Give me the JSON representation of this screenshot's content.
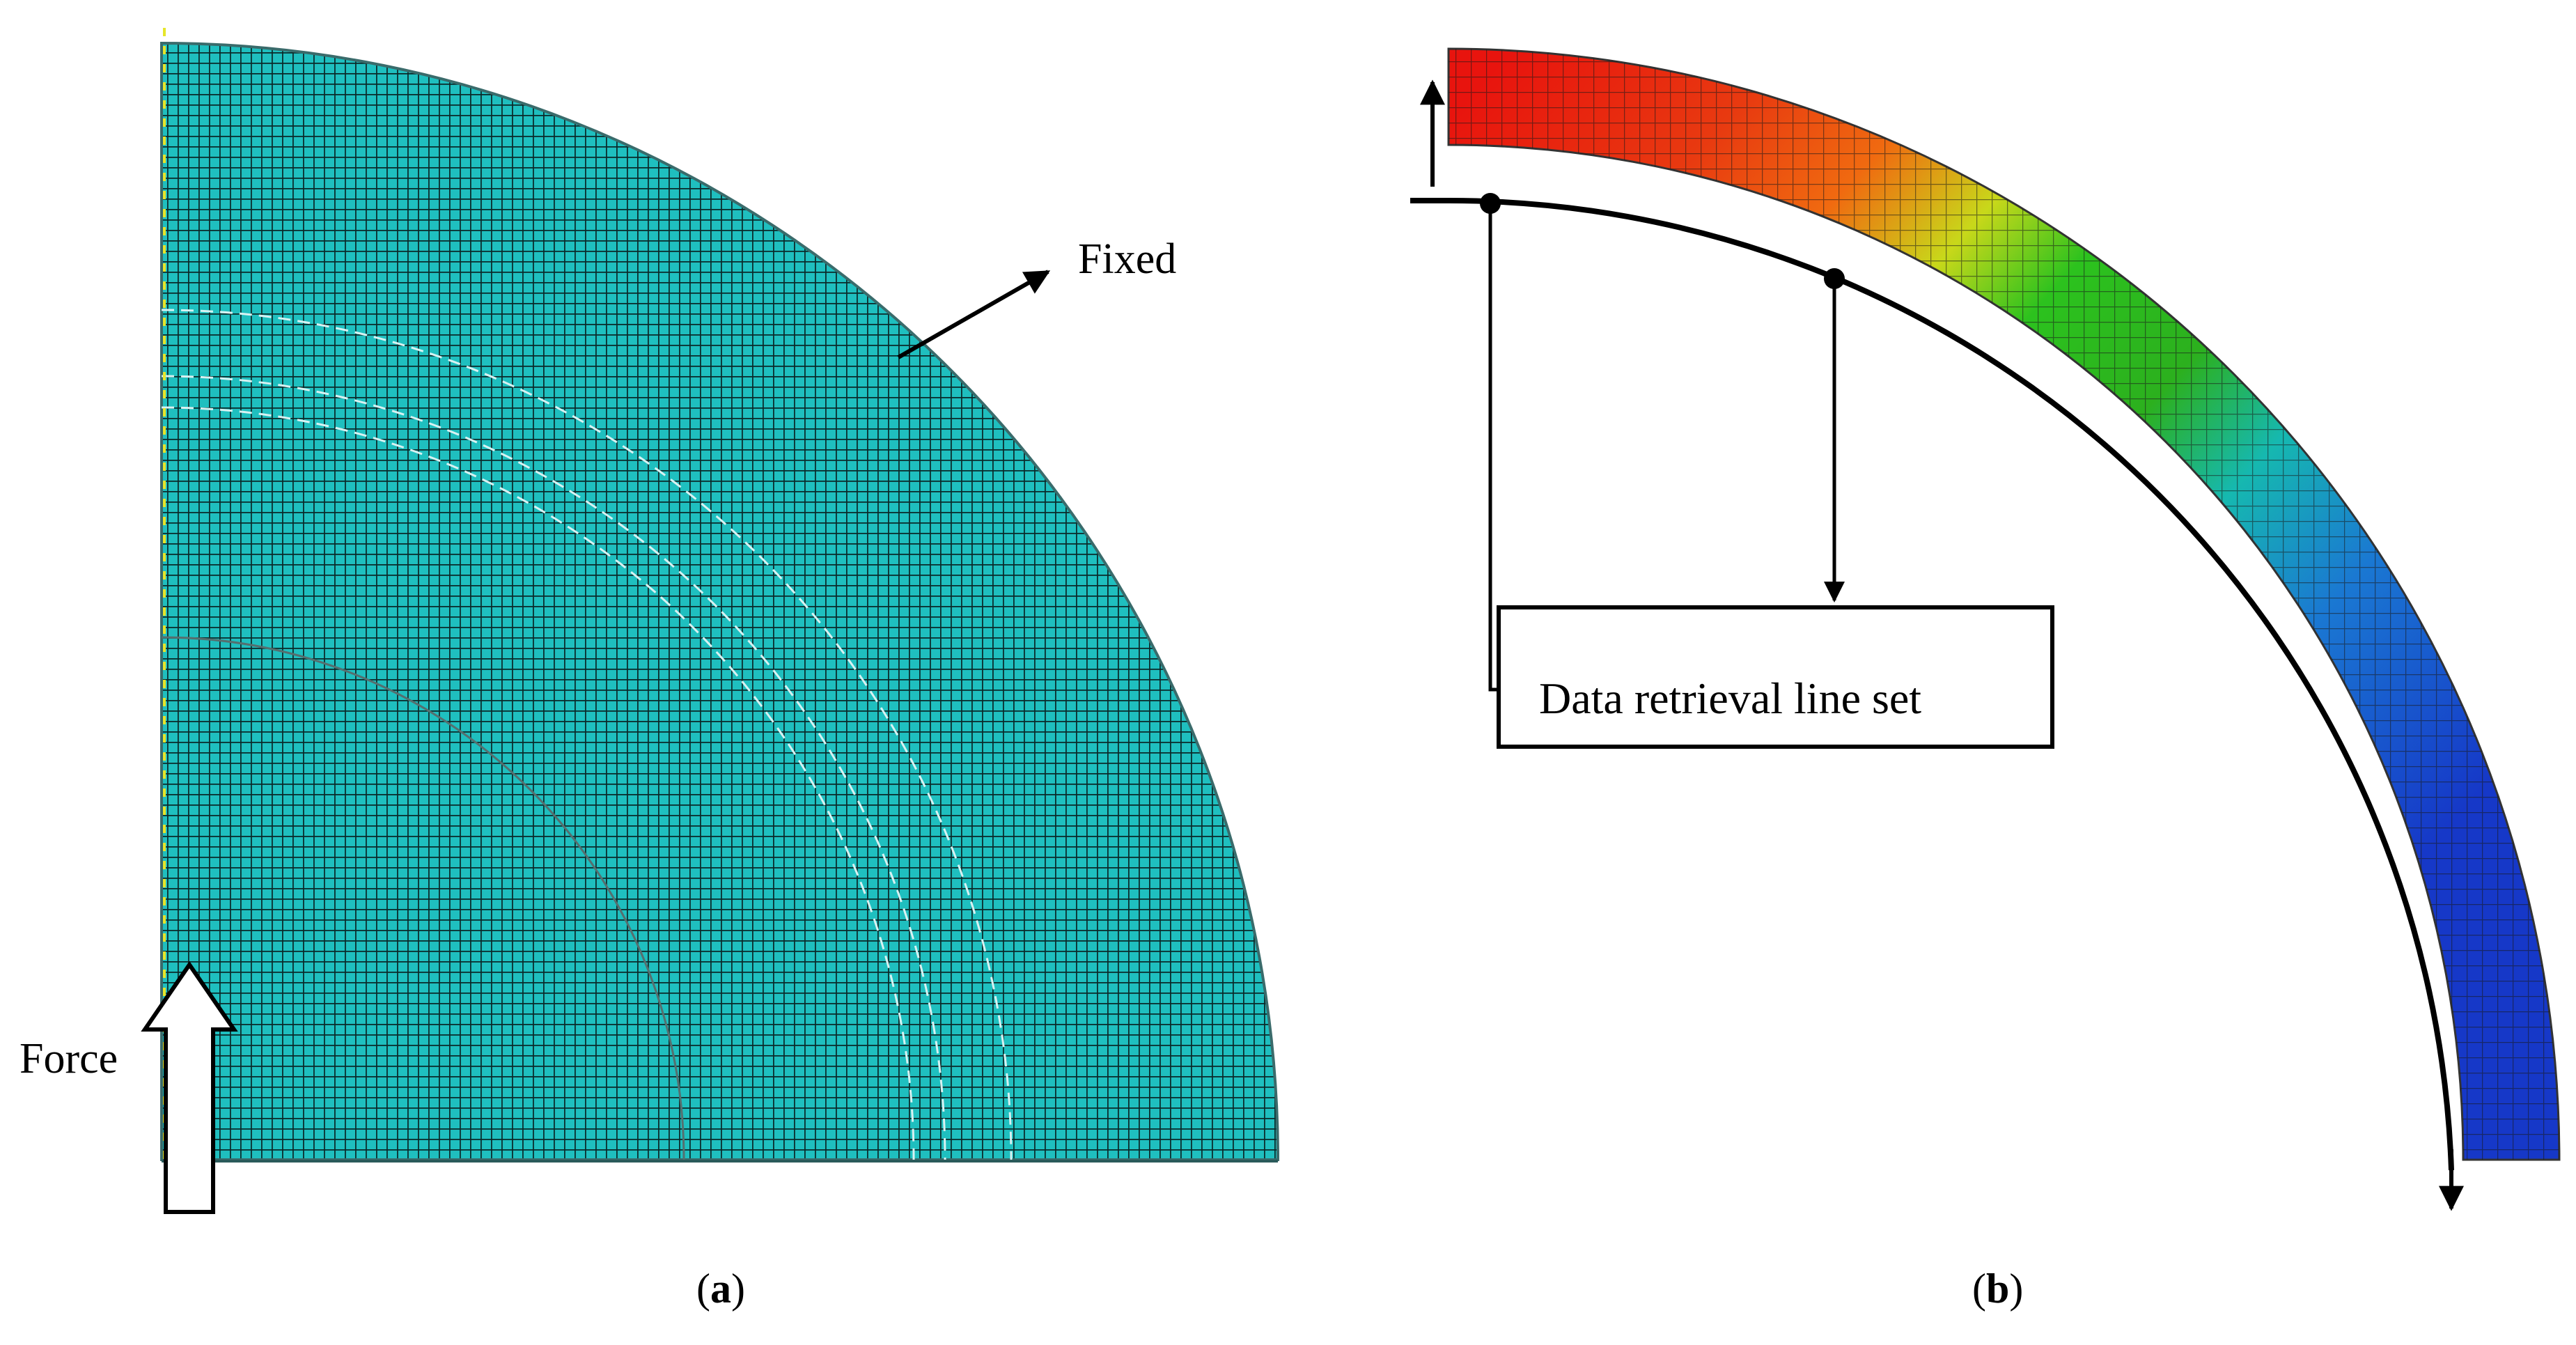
{
  "panel_a": {
    "caption_open": "(",
    "caption_letter": "a",
    "caption_close": ")",
    "label_fixed": "Fixed",
    "label_force": "Force",
    "mesh_color": "#1fbfbf",
    "grid_color": "#0a2a2a"
  },
  "panel_b": {
    "caption_open": "(",
    "caption_letter": "b",
    "caption_close": ")",
    "label_line_set": "Data retrieval line set",
    "contour_colors": [
      "#e8140e",
      "#f06a10",
      "#c8d81a",
      "#2cc21e",
      "#16b8b0",
      "#1a78d2",
      "#1638c8"
    ]
  }
}
